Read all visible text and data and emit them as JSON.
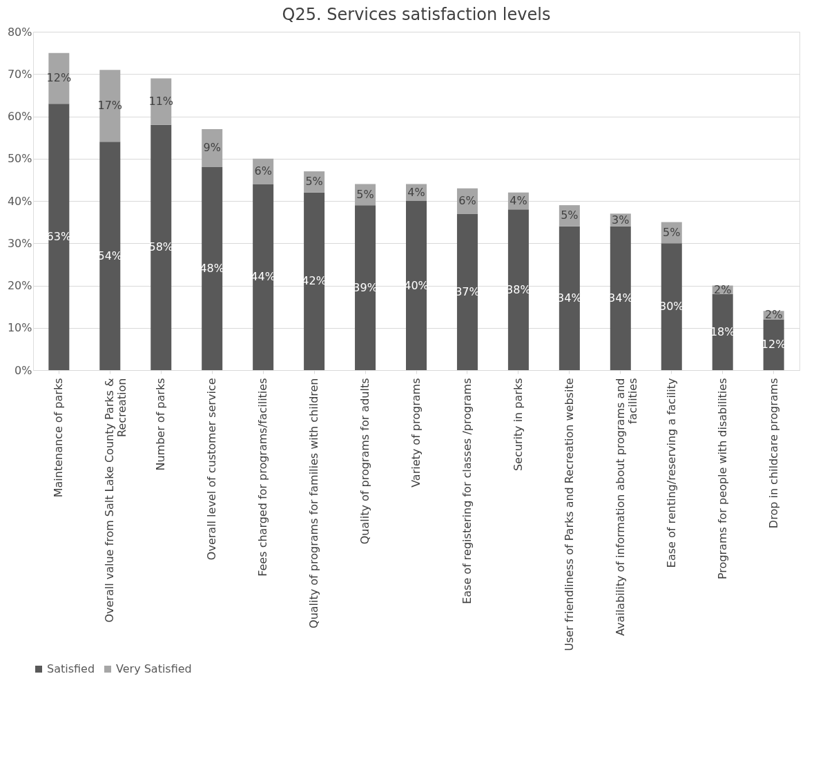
{
  "chart_data": {
    "type": "bar",
    "stacked": true,
    "title": "Q25.  Services satisfaction levels",
    "categories": [
      "Maintenance of parks",
      "Overall value from Salt Lake County Parks & Recreation",
      "Number of parks",
      "Overall level of customer service",
      "Fees charged for programs/facilities",
      "Quality of programs for families with children",
      "Quality of programs for adults",
      "Variety of programs",
      "Ease of registering for classes /programs",
      "Security in parks",
      "User friendliness of Parks and Recreation website",
      "Availability of information about programs and facilities",
      "Ease of renting/reserving a facility",
      "Programs for people with disabilities",
      "Drop in childcare programs"
    ],
    "series": [
      {
        "name": "Satisfied",
        "color": "#595959",
        "values": [
          63,
          54,
          58,
          48,
          44,
          42,
          39,
          40,
          37,
          38,
          34,
          34,
          30,
          18,
          12
        ],
        "value_labels": [
          "63%",
          "54%",
          "58%",
          "48%",
          "44%",
          "42%",
          "39%",
          "40%",
          "37%",
          "38%",
          "34%",
          "34%",
          "30%",
          "18%",
          "12%"
        ]
      },
      {
        "name": "Very Satisfied",
        "color": "#a6a6a6",
        "values": [
          12,
          17,
          11,
          9,
          6,
          5,
          5,
          4,
          6,
          4,
          5,
          3,
          5,
          2,
          2
        ],
        "value_labels": [
          "12%",
          "17%",
          "11%",
          "9%",
          "6%",
          "5%",
          "5%",
          "4%",
          "6%",
          "4%",
          "5%",
          "3%",
          "5%",
          "2%",
          "2%"
        ]
      }
    ],
    "ylim": [
      0,
      80
    ],
    "yticks": [
      {
        "value": 0,
        "label": "0%"
      },
      {
        "value": 10,
        "label": "10%"
      },
      {
        "value": 20,
        "label": "20%"
      },
      {
        "value": 30,
        "label": "30%"
      },
      {
        "value": 40,
        "label": "40%"
      },
      {
        "value": 50,
        "label": "50%"
      },
      {
        "value": 60,
        "label": "60%"
      },
      {
        "value": 70,
        "label": "70%"
      },
      {
        "value": 80,
        "label": "80%"
      }
    ],
    "grid": "y",
    "legend": "bottom"
  }
}
